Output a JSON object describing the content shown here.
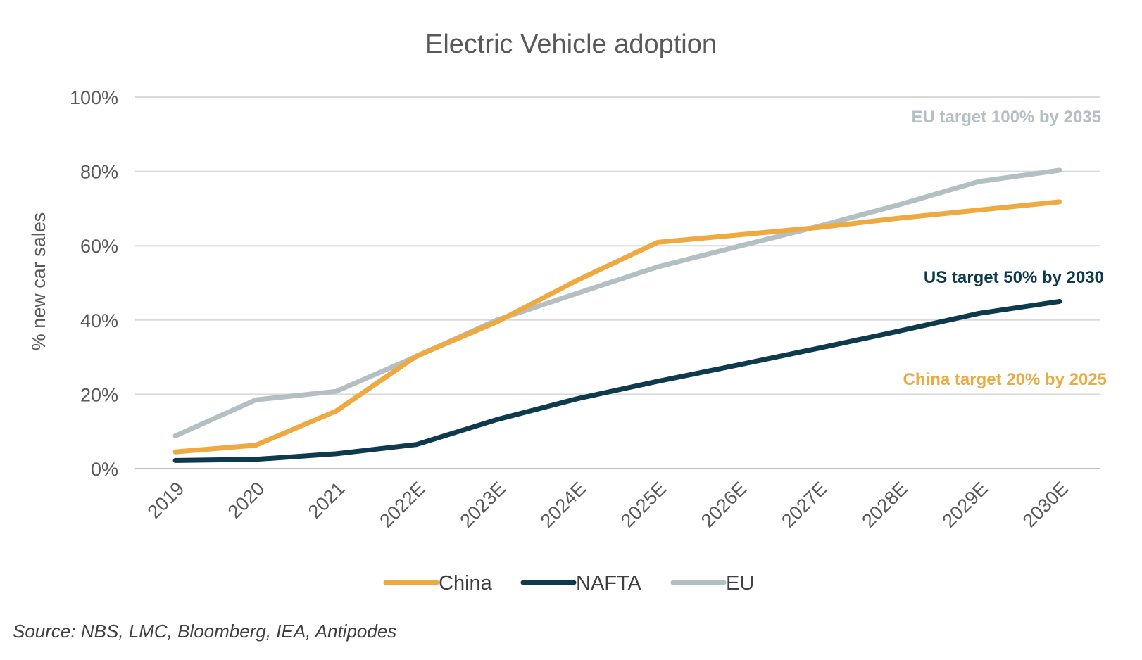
{
  "chart_data": {
    "type": "line",
    "title": "Electric Vehicle adoption",
    "xlabel": "",
    "ylabel": "% new car sales",
    "categories": [
      "2019",
      "2020",
      "2021",
      "2022E",
      "2023E",
      "2024E",
      "2025E",
      "2026E",
      "2027E",
      "2028E",
      "2029E",
      "2030E"
    ],
    "ylim": [
      0,
      100
    ],
    "yticks": [
      "0%",
      "20%",
      "40%",
      "60%",
      "80%",
      "100%"
    ],
    "ytick_values": [
      0,
      20,
      40,
      60,
      80,
      100
    ],
    "grid": true,
    "legend_position": "bottom",
    "series": [
      {
        "name": "China",
        "color": "#EEA941",
        "values": [
          4.5,
          6.3,
          15.5,
          30.3,
          39.5,
          50.7,
          60.9,
          62.9,
          64.9,
          67.4,
          69.6,
          71.8
        ]
      },
      {
        "name": "NAFTA",
        "color": "#0E3A4E",
        "values": [
          2.2,
          2.5,
          4.0,
          6.5,
          13.2,
          18.8,
          23.5,
          27.9,
          32.4,
          37.0,
          41.8,
          45.0
        ]
      },
      {
        "name": "EU",
        "color": "#B4BFC4",
        "values": [
          8.8,
          18.5,
          20.8,
          30.2,
          40.0,
          47.2,
          54.3,
          59.8,
          65.2,
          71.0,
          77.3,
          80.3
        ]
      }
    ],
    "annotations": [
      {
        "text": "EU target 100% by 2035",
        "color": "#B4BFC4"
      },
      {
        "text": "US target 50% by 2030",
        "color": "#0E3A4E"
      },
      {
        "text": "China target 20% by 2025",
        "color": "#EEA941"
      }
    ],
    "source": "Source: NBS, LMC, Bloomberg, IEA, Antipodes"
  }
}
